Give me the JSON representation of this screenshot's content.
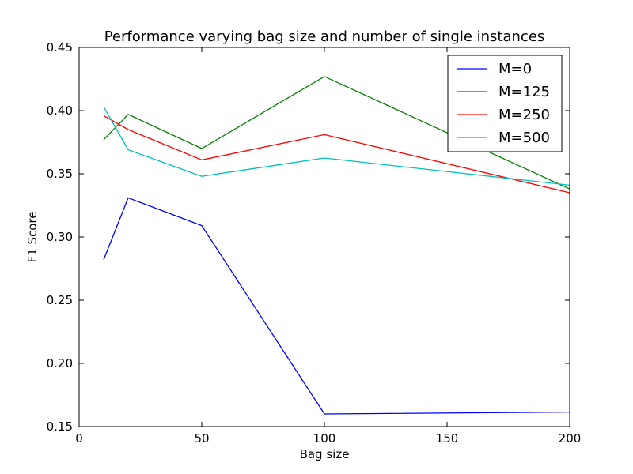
{
  "chart_data": {
    "type": "line",
    "title": "Performance varying bag size and number of single instances",
    "xlabel": "Bag size",
    "ylabel": "F1 Score",
    "xlim": [
      0,
      200
    ],
    "ylim": [
      0.15,
      0.45
    ],
    "xticks": [
      "0",
      "50",
      "100",
      "150",
      "200"
    ],
    "yticks": [
      "0.15",
      "0.20",
      "0.25",
      "0.30",
      "0.35",
      "0.40",
      "0.45"
    ],
    "grid": false,
    "legend_position": "top-right",
    "x": [
      10,
      20,
      50,
      100,
      200
    ],
    "series": [
      {
        "name": "M=0",
        "color": "#0000ff",
        "values": [
          0.282,
          0.331,
          0.309,
          0.16,
          0.1615
        ]
      },
      {
        "name": "M=125",
        "color": "#008000",
        "values": [
          0.377,
          0.397,
          0.37,
          0.427,
          0.338
        ]
      },
      {
        "name": "M=250",
        "color": "#ff0000",
        "values": [
          0.396,
          0.385,
          0.361,
          0.381,
          0.335
        ]
      },
      {
        "name": "M=500",
        "color": "#00bfbf",
        "values": [
          0.403,
          0.369,
          0.348,
          0.3625,
          0.341
        ]
      }
    ]
  }
}
